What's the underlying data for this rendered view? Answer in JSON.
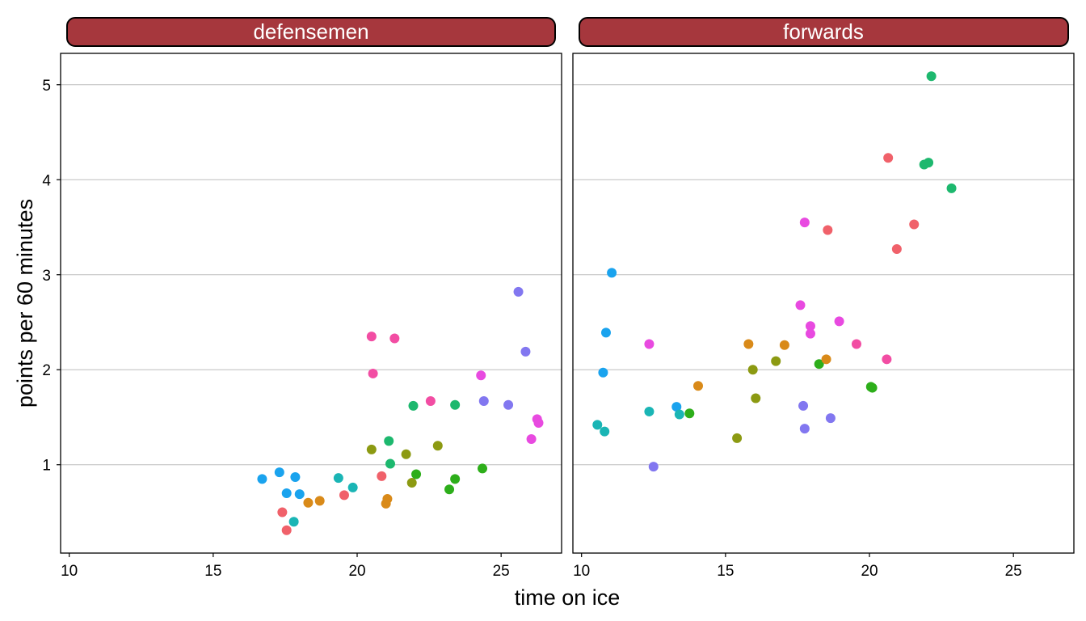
{
  "chart_data": {
    "type": "scatter",
    "xlabel": "time on ice",
    "ylabel": "points per 60 minutes",
    "xlim": [
      9.7,
      27.1
    ],
    "ylim": [
      0.07,
      5.33
    ],
    "xticks": [
      10,
      15,
      20,
      25
    ],
    "yticks": [
      1,
      2,
      3,
      4,
      5
    ],
    "grid": "horizontal major lines only",
    "strip_color": "#A6373D",
    "point_colors": [
      "#F8766D",
      "#D39200",
      "#93AA00",
      "#00BA38",
      "#00C19F",
      "#00B9E3",
      "#619CFF",
      "#DB72FB",
      "#FF61C3",
      "#F03FE6",
      "#3EA7F0",
      "#13B573",
      "#807AF5",
      "#ED3F93"
    ],
    "panels": [
      {
        "label": "defensemen",
        "points": [
          {
            "x": 16.7,
            "y": 0.85,
            "color": "#1AA3EE"
          },
          {
            "x": 17.3,
            "y": 0.92,
            "color": "#1AA3EE"
          },
          {
            "x": 17.4,
            "y": 0.5,
            "color": "#F0616A"
          },
          {
            "x": 17.55,
            "y": 0.31,
            "color": "#F0616A"
          },
          {
            "x": 17.55,
            "y": 0.7,
            "color": "#1AA3EE"
          },
          {
            "x": 17.85,
            "y": 0.87,
            "color": "#1AA3EE"
          },
          {
            "x": 17.8,
            "y": 0.4,
            "color": "#1AB5B5"
          },
          {
            "x": 18.0,
            "y": 0.69,
            "color": "#1AA3EE"
          },
          {
            "x": 18.3,
            "y": 0.6,
            "color": "#D98A19"
          },
          {
            "x": 18.7,
            "y": 0.62,
            "color": "#D98A19"
          },
          {
            "x": 19.35,
            "y": 0.86,
            "color": "#1AB5B5"
          },
          {
            "x": 19.55,
            "y": 0.68,
            "color": "#F0616A"
          },
          {
            "x": 19.85,
            "y": 0.76,
            "color": "#1AB5B5"
          },
          {
            "x": 20.5,
            "y": 2.35,
            "color": "#F24DA3"
          },
          {
            "x": 20.55,
            "y": 1.96,
            "color": "#F24DA3"
          },
          {
            "x": 20.5,
            "y": 1.16,
            "color": "#8C9A12"
          },
          {
            "x": 20.85,
            "y": 0.88,
            "color": "#F0616A"
          },
          {
            "x": 21.0,
            "y": 0.59,
            "color": "#D98A19"
          },
          {
            "x": 21.05,
            "y": 0.64,
            "color": "#D98A19"
          },
          {
            "x": 21.1,
            "y": 1.25,
            "color": "#1DB86E"
          },
          {
            "x": 21.15,
            "y": 1.01,
            "color": "#1DB86E"
          },
          {
            "x": 21.3,
            "y": 2.33,
            "color": "#F24DA3"
          },
          {
            "x": 21.7,
            "y": 1.11,
            "color": "#8C9A12"
          },
          {
            "x": 21.9,
            "y": 0.81,
            "color": "#8C9A12"
          },
          {
            "x": 21.95,
            "y": 1.62,
            "color": "#1DB86E"
          },
          {
            "x": 22.05,
            "y": 0.9,
            "color": "#2DAE1A"
          },
          {
            "x": 22.55,
            "y": 1.67,
            "color": "#F24DA3"
          },
          {
            "x": 22.8,
            "y": 1.2,
            "color": "#8C9A12"
          },
          {
            "x": 23.2,
            "y": 0.74,
            "color": "#2DAE1A"
          },
          {
            "x": 23.4,
            "y": 1.63,
            "color": "#1DB86E"
          },
          {
            "x": 23.4,
            "y": 0.85,
            "color": "#2DAE1A"
          },
          {
            "x": 24.3,
            "y": 1.94,
            "color": "#E84AE0"
          },
          {
            "x": 24.35,
            "y": 0.96,
            "color": "#2DAE1A"
          },
          {
            "x": 24.4,
            "y": 1.67,
            "color": "#8277F0"
          },
          {
            "x": 25.25,
            "y": 1.63,
            "color": "#8277F0"
          },
          {
            "x": 25.6,
            "y": 2.82,
            "color": "#8277F0"
          },
          {
            "x": 25.85,
            "y": 2.19,
            "color": "#8277F0"
          },
          {
            "x": 26.05,
            "y": 1.27,
            "color": "#E84AE0"
          },
          {
            "x": 26.25,
            "y": 1.48,
            "color": "#E84AE0"
          },
          {
            "x": 26.3,
            "y": 1.44,
            "color": "#E84AE0"
          }
        ]
      },
      {
        "label": "forwards",
        "points": [
          {
            "x": 10.55,
            "y": 1.42,
            "color": "#1AB5B5"
          },
          {
            "x": 10.75,
            "y": 1.97,
            "color": "#1AA3EE"
          },
          {
            "x": 10.8,
            "y": 1.35,
            "color": "#1AB5B5"
          },
          {
            "x": 10.85,
            "y": 2.39,
            "color": "#1AA3EE"
          },
          {
            "x": 11.05,
            "y": 3.02,
            "color": "#1AA3EE"
          },
          {
            "x": 12.35,
            "y": 1.56,
            "color": "#1AB5B5"
          },
          {
            "x": 12.35,
            "y": 2.27,
            "color": "#E84AE0"
          },
          {
            "x": 12.5,
            "y": 0.98,
            "color": "#8277F0"
          },
          {
            "x": 13.3,
            "y": 1.61,
            "color": "#1AA3EE"
          },
          {
            "x": 13.4,
            "y": 1.53,
            "color": "#1AB5B5"
          },
          {
            "x": 13.75,
            "y": 1.54,
            "color": "#2DAE1A"
          },
          {
            "x": 14.05,
            "y": 1.83,
            "color": "#D98A19"
          },
          {
            "x": 15.4,
            "y": 1.28,
            "color": "#8C9A12"
          },
          {
            "x": 15.8,
            "y": 2.27,
            "color": "#D98A19"
          },
          {
            "x": 15.95,
            "y": 2.0,
            "color": "#8C9A12"
          },
          {
            "x": 16.05,
            "y": 1.7,
            "color": "#8C9A12"
          },
          {
            "x": 16.75,
            "y": 2.09,
            "color": "#8C9A12"
          },
          {
            "x": 17.05,
            "y": 2.26,
            "color": "#D98A19"
          },
          {
            "x": 17.6,
            "y": 2.68,
            "color": "#E84AE0"
          },
          {
            "x": 17.7,
            "y": 1.62,
            "color": "#8277F0"
          },
          {
            "x": 17.75,
            "y": 3.55,
            "color": "#E84AE0"
          },
          {
            "x": 17.75,
            "y": 1.38,
            "color": "#8277F0"
          },
          {
            "x": 17.95,
            "y": 2.46,
            "color": "#E84AE0"
          },
          {
            "x": 17.95,
            "y": 2.38,
            "color": "#E84AE0"
          },
          {
            "x": 18.25,
            "y": 2.06,
            "color": "#2DAE1A"
          },
          {
            "x": 18.5,
            "y": 2.11,
            "color": "#D98A19"
          },
          {
            "x": 18.55,
            "y": 3.47,
            "color": "#F0616A"
          },
          {
            "x": 18.65,
            "y": 1.49,
            "color": "#8277F0"
          },
          {
            "x": 18.95,
            "y": 2.51,
            "color": "#E84AE0"
          },
          {
            "x": 19.55,
            "y": 2.27,
            "color": "#F24DA3"
          },
          {
            "x": 20.05,
            "y": 1.82,
            "color": "#2DAE1A"
          },
          {
            "x": 20.1,
            "y": 1.81,
            "color": "#2DAE1A"
          },
          {
            "x": 20.6,
            "y": 2.11,
            "color": "#F24DA3"
          },
          {
            "x": 20.65,
            "y": 4.23,
            "color": "#F0616A"
          },
          {
            "x": 20.95,
            "y": 3.27,
            "color": "#F0616A"
          },
          {
            "x": 21.55,
            "y": 3.53,
            "color": "#F0616A"
          },
          {
            "x": 21.9,
            "y": 4.16,
            "color": "#1DB86E"
          },
          {
            "x": 22.05,
            "y": 4.18,
            "color": "#1DB86E"
          },
          {
            "x": 22.15,
            "y": 5.09,
            "color": "#1DB86E"
          },
          {
            "x": 22.85,
            "y": 3.91,
            "color": "#1DB86E"
          }
        ]
      }
    ]
  }
}
